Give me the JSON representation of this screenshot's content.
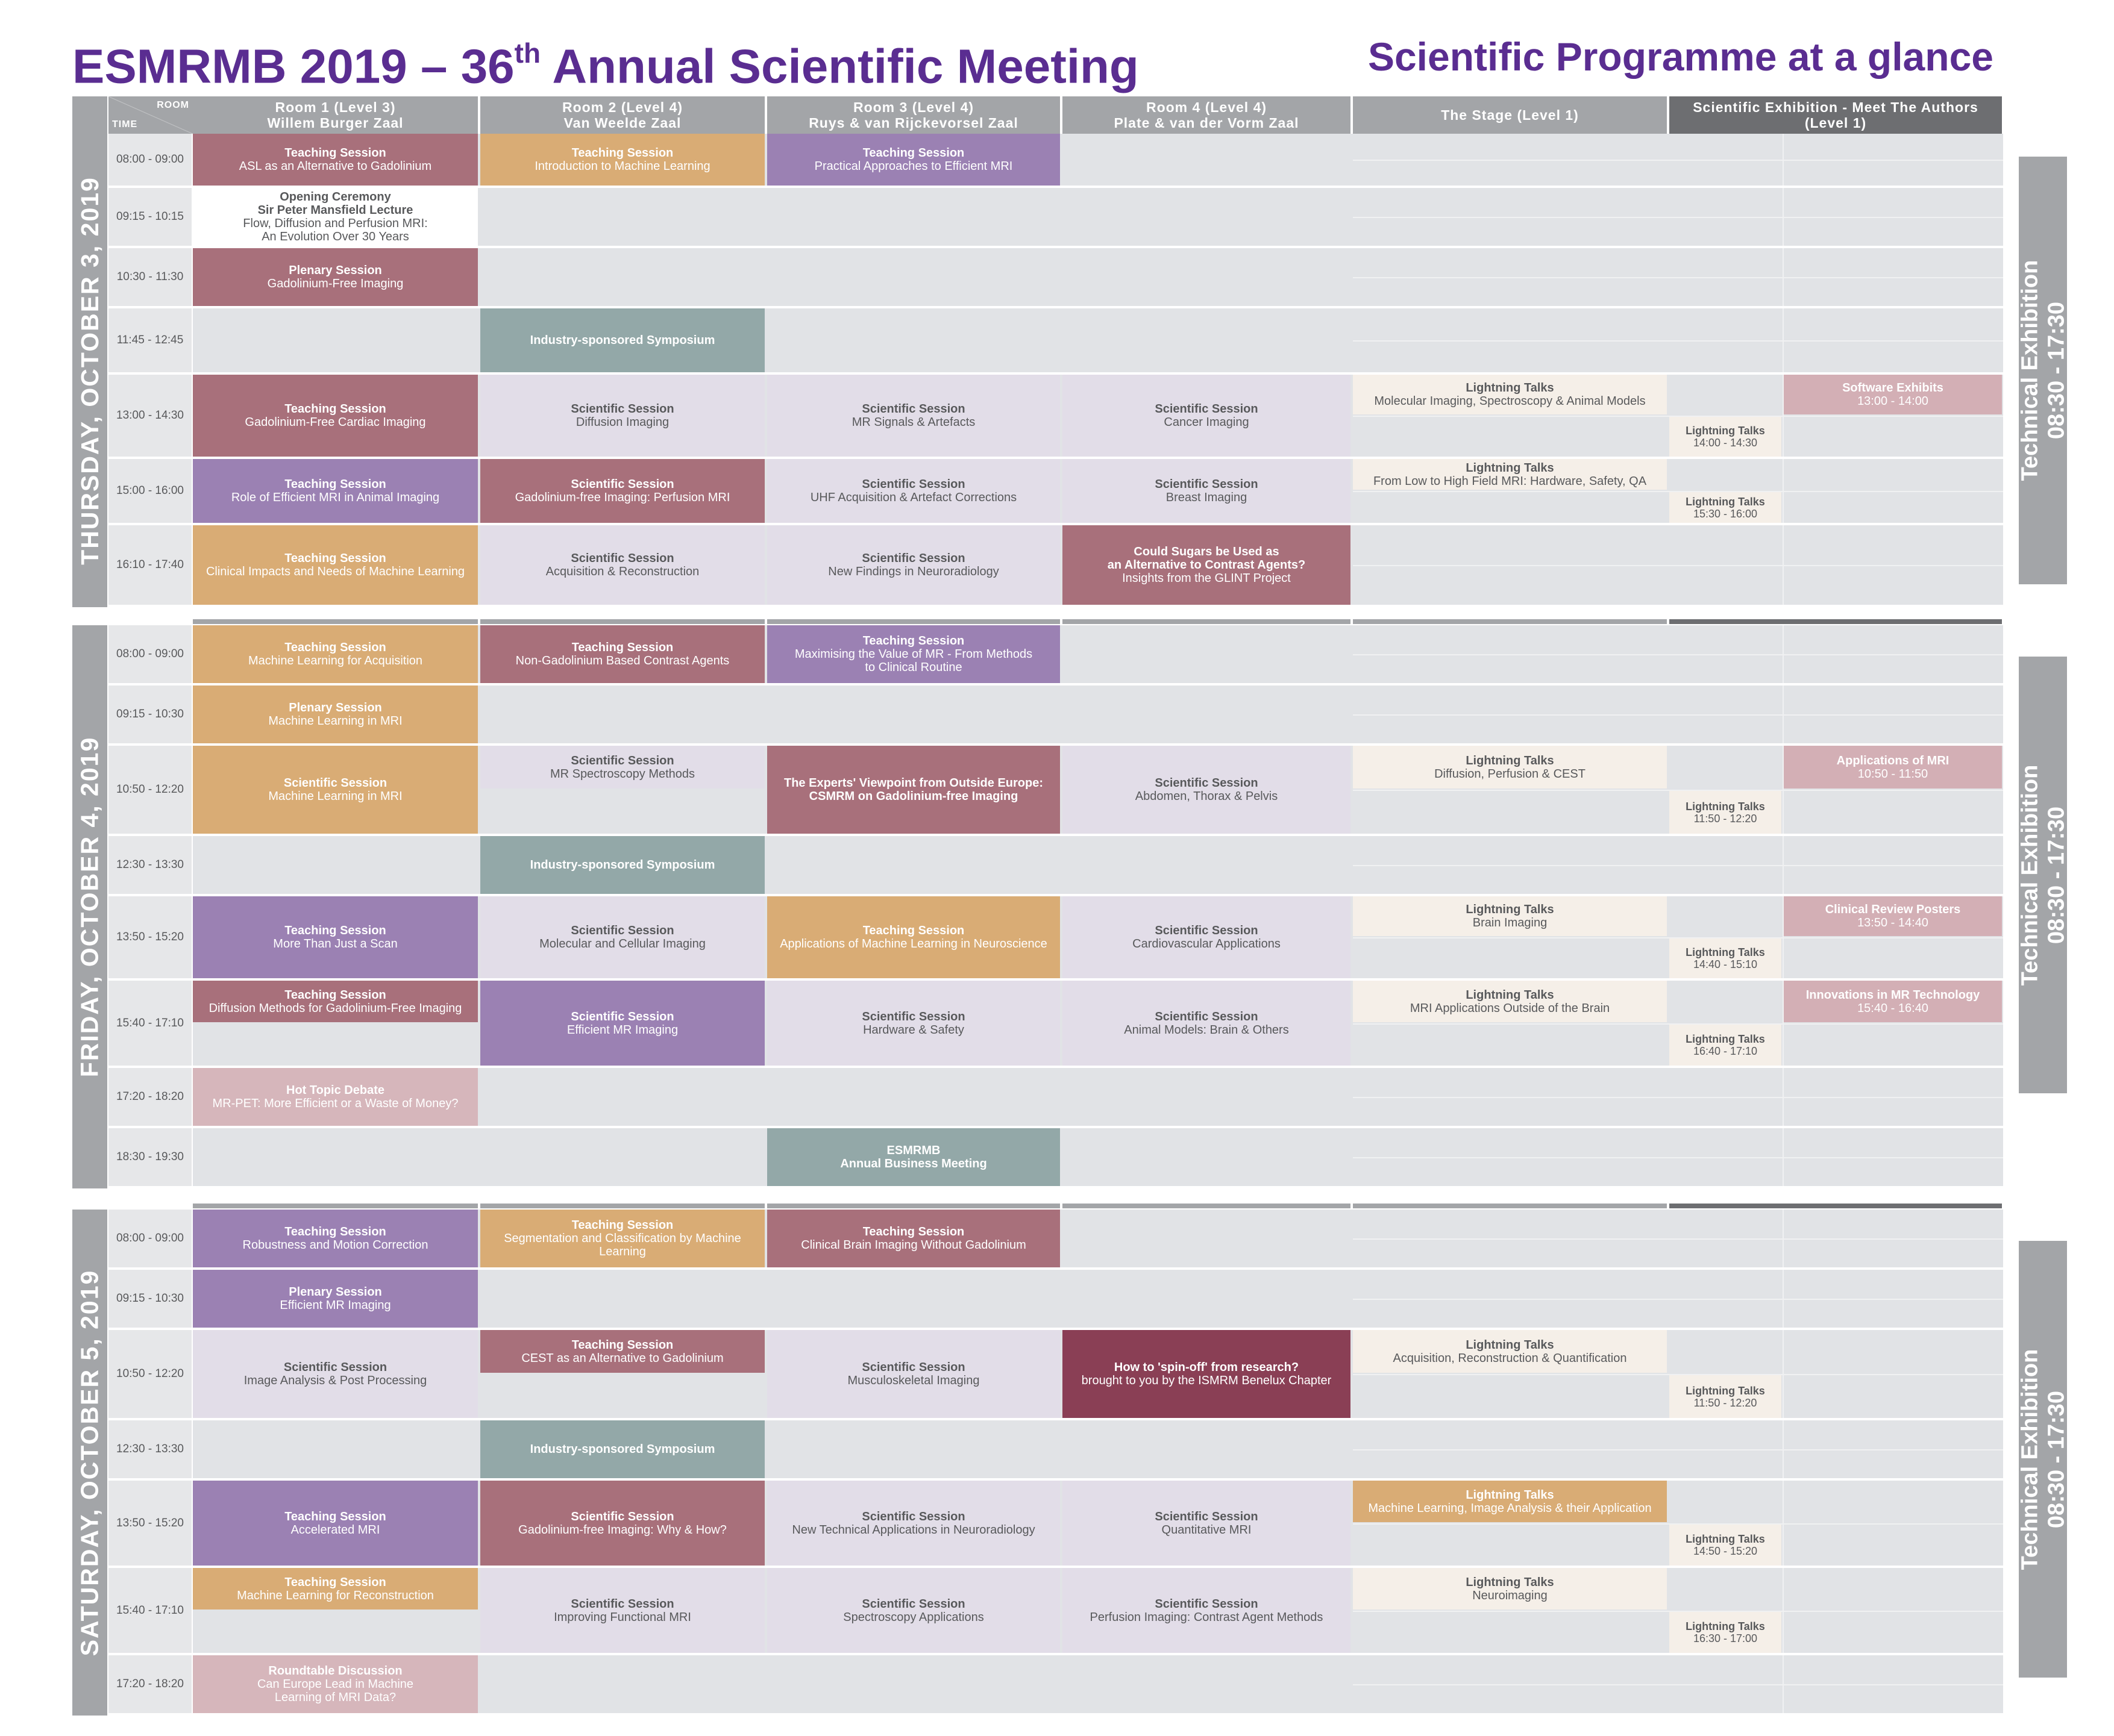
{
  "title_left": {
    "main": "ESMRMB 2019 – 36",
    "sup": "th",
    "rest": " Annual Scientific Meeting"
  },
  "title_right": "Scientific Programme at a glance",
  "corner": {
    "room": "ROOM",
    "time": "TIME"
  },
  "rooms": [
    {
      "line1": "Room 1 (Level 3)",
      "line2": "Willem Burger Zaal"
    },
    {
      "line1": "Room 2 (Level 4)",
      "line2": "Van Weelde Zaal"
    },
    {
      "line1": "Room 3 (Level 4)",
      "line2": "Ruys & van Rijckevorsel Zaal"
    },
    {
      "line1": "Room 4 (Level 4)",
      "line2": "Plate & van der Vorm Zaal"
    },
    {
      "line1": "The Stage (Level 1)",
      "line2": ""
    },
    {
      "line1": "Scientific Exhibition - Meet The Authors",
      "line2": "(Level 1)"
    }
  ],
  "colors": {
    "purple_title": "#5a2d91",
    "rose": "#a8707b",
    "tan": "#d9ac75",
    "lilac": "#9b81b3",
    "teal": "#93a8a8",
    "lavender": "#e2dde8",
    "cream": "#f5efe8",
    "pink": "#d3afb5",
    "wine": "#8a3f55",
    "pale_pink": "#d6b6bb",
    "white": "#ffffff",
    "grey_bg": "#e1e3e6"
  },
  "days": [
    {
      "label": "THURSDAY, OCTOBER 3, 2019",
      "tech": {
        "line1": "Technical Exhibition",
        "line2": "08:30 - 17:30"
      },
      "times": [
        "08:00 - 09:00",
        "09:15 - 10:15",
        "10:30 - 11:30",
        "11:45 - 12:45",
        "13:00 - 14:30",
        "15:00 - 16:00",
        "16:10 - 17:40"
      ],
      "sessions": [
        {
          "row": 0,
          "col": 0,
          "kind": "rose",
          "title": "Teaching Session",
          "sub": "ASL as an Alternative to Gadolinium"
        },
        {
          "row": 0,
          "col": 1,
          "kind": "tan",
          "title": "Teaching Session",
          "sub": "Introduction to Machine Learning"
        },
        {
          "row": 0,
          "col": 2,
          "kind": "lilac",
          "title": "Teaching Session",
          "sub": "Practical Approaches to Efficient MRI"
        },
        {
          "row": 1,
          "col": 0,
          "kind": "white",
          "title": "Opening Ceremony",
          "title2": "Sir Peter Mansfield Lecture",
          "sub": "Flow, Diffusion and Perfusion MRI:",
          "sub2": "An Evolution Over 30 Years"
        },
        {
          "row": 2,
          "col": 0,
          "kind": "rose",
          "title": "Plenary Session",
          "sub": "Gadolinium-Free Imaging"
        },
        {
          "row": 3,
          "col": 1,
          "kind": "teal",
          "title": "Industry-sponsored Symposium"
        },
        {
          "row": 4,
          "col": 0,
          "kind": "rose",
          "title": "Teaching Session",
          "sub": "Gadolinium-Free Cardiac Imaging"
        },
        {
          "row": 4,
          "col": 1,
          "kind": "lavender",
          "title": "Scientific Session",
          "sub": "Diffusion Imaging"
        },
        {
          "row": 4,
          "col": 2,
          "kind": "lavender",
          "title": "Scientific Session",
          "sub": "MR Signals & Artefacts"
        },
        {
          "row": 4,
          "col": 3,
          "kind": "lavender",
          "title": "Scientific Session",
          "sub": "Cancer Imaging"
        },
        {
          "row": 4,
          "col": 4,
          "kind": "cream",
          "half": "top",
          "title": "Lightning Talks",
          "sub": "Molecular Imaging, Spectroscopy & Animal Models"
        },
        {
          "row": 4,
          "col": 6,
          "kind": "pink",
          "half": "top",
          "title": "Software Exhibits",
          "sub": "13:00 - 14:00"
        },
        {
          "row": 4,
          "col": 5,
          "kind": "cream",
          "half": "bottom",
          "title": "Lightning Talks",
          "sub": "14:00 - 14:30"
        },
        {
          "row": 5,
          "col": 0,
          "kind": "lilac",
          "title": "Teaching Session",
          "sub": "Role of Efficient MRI in Animal Imaging"
        },
        {
          "row": 5,
          "col": 1,
          "kind": "rose",
          "title": "Scientific Session",
          "sub": "Gadolinium-free Imaging: Perfusion MRI"
        },
        {
          "row": 5,
          "col": 2,
          "kind": "lavender",
          "title": "Scientific Session",
          "sub": "UHF Acquisition & Artefact Corrections"
        },
        {
          "row": 5,
          "col": 3,
          "kind": "lavender",
          "title": "Scientific Session",
          "sub": "Breast Imaging"
        },
        {
          "row": 5,
          "col": 4,
          "kind": "cream",
          "half": "top",
          "title": "Lightning Talks",
          "sub": "From Low to High Field MRI: Hardware, Safety, QA"
        },
        {
          "row": 5,
          "col": 5,
          "kind": "cream",
          "half": "bottom",
          "title": "Lightning Talks",
          "sub": "15:30 - 16:00"
        },
        {
          "row": 6,
          "col": 0,
          "kind": "tan",
          "title": "Teaching Session",
          "sub": "Clinical Impacts and Needs of Machine Learning"
        },
        {
          "row": 6,
          "col": 1,
          "kind": "lavender",
          "title": "Scientific Session",
          "sub": "Acquisition & Reconstruction"
        },
        {
          "row": 6,
          "col": 2,
          "kind": "lavender",
          "title": "Scientific Session",
          "sub": "New Findings in Neuroradiology"
        },
        {
          "row": 6,
          "col": 3,
          "kind": "rose",
          "title": "Could Sugars be Used as",
          "title2": "an Alternative to Contrast Agents?",
          "sub": "Insights from the GLINT Project"
        }
      ]
    },
    {
      "label": "FRIDAY, OCTOBER 4, 2019",
      "tech": {
        "line1": "Technical Exhibition",
        "line2": "08:30 - 17:30"
      },
      "times": [
        "08:00 - 09:00",
        "09:15 - 10:30",
        "10:50 - 12:20",
        "12:30 - 13:30",
        "13:50 - 15:20",
        "15:40 - 17:10",
        "17:20 - 18:20",
        "18:30 - 19:30"
      ],
      "sessions": [
        {
          "row": 0,
          "col": 0,
          "kind": "tan",
          "title": "Teaching Session",
          "sub": "Machine Learning for Acquisition"
        },
        {
          "row": 0,
          "col": 1,
          "kind": "rose",
          "title": "Teaching Session",
          "sub": "Non-Gadolinium Based Contrast Agents"
        },
        {
          "row": 0,
          "col": 2,
          "kind": "lilac",
          "title": "Teaching Session",
          "sub": "Maximising the Value of MR - From Methods",
          "sub2": "to Clinical Routine"
        },
        {
          "row": 1,
          "col": 0,
          "kind": "tan",
          "title": "Plenary Session",
          "sub": "Machine Learning in MRI"
        },
        {
          "row": 2,
          "col": 0,
          "kind": "tan",
          "title": "Scientific Session",
          "sub": "Machine Learning in MRI"
        },
        {
          "row": 2,
          "col": 1,
          "kind": "lavender",
          "half": "top",
          "title": "Scientific Session",
          "sub": "MR Spectroscopy Methods"
        },
        {
          "row": 2,
          "col": 2,
          "kind": "rose",
          "title": "The Experts' Viewpoint from Outside Europe:",
          "title2": "CSMRM on Gadolinium-free Imaging"
        },
        {
          "row": 2,
          "col": 3,
          "kind": "lavender",
          "title": "Scientific Session",
          "sub": "Abdomen, Thorax & Pelvis"
        },
        {
          "row": 2,
          "col": 4,
          "kind": "cream",
          "half": "top",
          "title": "Lightning Talks",
          "sub": "Diffusion, Perfusion & CEST"
        },
        {
          "row": 2,
          "col": 6,
          "kind": "pink",
          "half": "top",
          "title": "Applications of MRI",
          "sub": "10:50 - 11:50"
        },
        {
          "row": 2,
          "col": 5,
          "kind": "cream",
          "half": "bottom",
          "title": "Lightning Talks",
          "sub": "11:50 - 12:20"
        },
        {
          "row": 3,
          "col": 1,
          "kind": "teal",
          "title": "Industry-sponsored Symposium"
        },
        {
          "row": 4,
          "col": 0,
          "kind": "lilac",
          "title": "Teaching Session",
          "sub": "More Than Just a Scan"
        },
        {
          "row": 4,
          "col": 1,
          "kind": "lavender",
          "title": "Scientific Session",
          "sub": "Molecular and Cellular Imaging"
        },
        {
          "row": 4,
          "col": 2,
          "kind": "tan",
          "title": "Teaching Session",
          "sub": "Applications of Machine Learning in Neuroscience"
        },
        {
          "row": 4,
          "col": 3,
          "kind": "lavender",
          "title": "Scientific Session",
          "sub": "Cardiovascular Applications"
        },
        {
          "row": 4,
          "col": 4,
          "kind": "cream",
          "half": "top",
          "title": "Lightning Talks",
          "sub": "Brain Imaging"
        },
        {
          "row": 4,
          "col": 6,
          "kind": "pink",
          "half": "top",
          "title": "Clinical Review Posters",
          "sub": "13:50 - 14:40"
        },
        {
          "row": 4,
          "col": 5,
          "kind": "cream",
          "half": "bottom",
          "title": "Lightning Talks",
          "sub": "14:40 - 15:10"
        },
        {
          "row": 5,
          "col": 0,
          "kind": "rose",
          "half": "top",
          "title": "Teaching Session",
          "sub": "Diffusion Methods for Gadolinium-Free Imaging"
        },
        {
          "row": 5,
          "col": 1,
          "kind": "lilac",
          "title": "Scientific Session",
          "sub": "Efficient MR Imaging"
        },
        {
          "row": 5,
          "col": 2,
          "kind": "lavender",
          "title": "Scientific Session",
          "sub": "Hardware & Safety"
        },
        {
          "row": 5,
          "col": 3,
          "kind": "lavender",
          "title": "Scientific Session",
          "sub": "Animal Models: Brain & Others"
        },
        {
          "row": 5,
          "col": 4,
          "kind": "cream",
          "half": "top",
          "title": "Lightning Talks",
          "sub": "MRI Applications Outside of the Brain"
        },
        {
          "row": 5,
          "col": 6,
          "kind": "pink",
          "half": "top",
          "title": "Innovations in MR Technology",
          "sub": "15:40 - 16:40"
        },
        {
          "row": 5,
          "col": 5,
          "kind": "cream",
          "half": "bottom",
          "title": "Lightning Talks",
          "sub": "16:40 - 17:10"
        },
        {
          "row": 6,
          "col": 0,
          "kind": "pale_pink",
          "title": "Hot Topic Debate",
          "sub": "MR-PET: More Efficient or a Waste of Money?"
        },
        {
          "row": 7,
          "col": 2,
          "kind": "teal",
          "title": "ESMRMB",
          "title2": "Annual Business Meeting"
        }
      ]
    },
    {
      "label": "SATURDAY, OCTOBER 5, 2019",
      "tech": {
        "line1": "Technical Exhibition",
        "line2": "08:30 - 17:30"
      },
      "times": [
        "08:00 - 09:00",
        "09:15 - 10:30",
        "10:50 - 12:20",
        "12:30 - 13:30",
        "13:50 - 15:20",
        "15:40 - 17:10",
        "17:20 - 18:20"
      ],
      "sessions": [
        {
          "row": 0,
          "col": 0,
          "kind": "lilac",
          "title": "Teaching Session",
          "sub": "Robustness and Motion Correction"
        },
        {
          "row": 0,
          "col": 1,
          "kind": "tan",
          "title": "Teaching Session",
          "sub": "Segmentation and Classification by Machine",
          "sub2": "Learning"
        },
        {
          "row": 0,
          "col": 2,
          "kind": "rose",
          "title": "Teaching Session",
          "sub": "Clinical Brain Imaging Without Gadolinium"
        },
        {
          "row": 1,
          "col": 0,
          "kind": "lilac",
          "title": "Plenary Session",
          "sub": "Efficient MR Imaging"
        },
        {
          "row": 2,
          "col": 0,
          "kind": "lavender",
          "title": "Scientific Session",
          "sub": "Image Analysis & Post Processing"
        },
        {
          "row": 2,
          "col": 1,
          "kind": "rose",
          "half": "top",
          "title": "Teaching Session",
          "sub": "CEST as an Alternative to Gadolinium"
        },
        {
          "row": 2,
          "col": 2,
          "kind": "lavender",
          "title": "Scientific Session",
          "sub": "Musculoskeletal Imaging"
        },
        {
          "row": 2,
          "col": 3,
          "kind": "wine",
          "title": "How to 'spin-off' from research?",
          "sub": "brought to you by the ISMRM Benelux Chapter"
        },
        {
          "row": 2,
          "col": 4,
          "kind": "cream",
          "half": "top",
          "title": "Lightning Talks",
          "sub": "Acquisition, Reconstruction & Quantification"
        },
        {
          "row": 2,
          "col": 5,
          "kind": "cream",
          "half": "bottom",
          "title": "Lightning Talks",
          "sub": "11:50 - 12:20"
        },
        {
          "row": 3,
          "col": 1,
          "kind": "teal",
          "title": "Industry-sponsored Symposium"
        },
        {
          "row": 4,
          "col": 0,
          "kind": "lilac",
          "title": "Teaching Session",
          "sub": "Accelerated MRI"
        },
        {
          "row": 4,
          "col": 1,
          "kind": "rose",
          "title": "Scientific Session",
          "sub": "Gadolinium-free Imaging: Why & How?"
        },
        {
          "row": 4,
          "col": 2,
          "kind": "lavender",
          "title": "Scientific Session",
          "sub": "New Technical Applications in Neuroradiology"
        },
        {
          "row": 4,
          "col": 3,
          "kind": "lavender",
          "title": "Scientific Session",
          "sub": "Quantitative MRI"
        },
        {
          "row": 4,
          "col": 4,
          "kind": "tan",
          "half": "top",
          "title": "Lightning Talks",
          "sub": "Machine Learning, Image Analysis & their Application"
        },
        {
          "row": 4,
          "col": 5,
          "kind": "cream",
          "half": "bottom",
          "title": "Lightning Talks",
          "sub": "14:50 - 15:20"
        },
        {
          "row": 5,
          "col": 0,
          "kind": "tan",
          "half": "top",
          "title": "Teaching Session",
          "sub": "Machine Learning for Reconstruction"
        },
        {
          "row": 5,
          "col": 1,
          "kind": "lavender",
          "title": "Scientific Session",
          "sub": "Improving Functional MRI"
        },
        {
          "row": 5,
          "col": 2,
          "kind": "lavender",
          "title": "Scientific Session",
          "sub": "Spectroscopy Applications"
        },
        {
          "row": 5,
          "col": 3,
          "kind": "lavender",
          "title": "Scientific Session",
          "sub": "Perfusion Imaging: Contrast Agent Methods"
        },
        {
          "row": 5,
          "col": 4,
          "kind": "cream",
          "half": "top",
          "title": "Lightning Talks",
          "sub": "Neuroimaging"
        },
        {
          "row": 5,
          "col": 5,
          "kind": "cream",
          "half": "bottom",
          "title": "Lightning Talks",
          "sub": "16:30 - 17:00"
        },
        {
          "row": 6,
          "col": 0,
          "kind": "pale_pink",
          "title": "Roundtable Discussion",
          "sub": "Can Europe Lead in Machine",
          "sub2": "Learning of MRI Data?"
        }
      ]
    }
  ]
}
